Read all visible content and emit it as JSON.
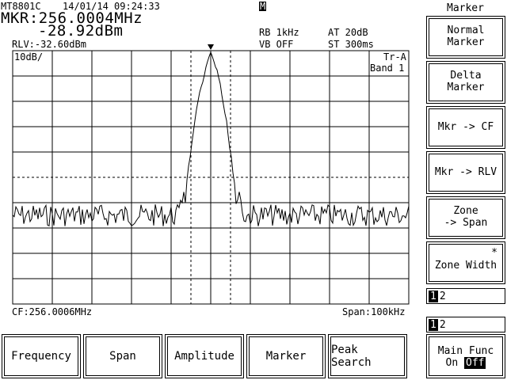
{
  "header": {
    "model": "MT8801C",
    "datetime": "14/01/14 09:24:33",
    "mkr_freq": "MKR:256.0004MHz",
    "mkr_level": "-28.92dBm",
    "rlv": "RLV:-32.60dBm",
    "rb": "RB 1kHz",
    "vb": "VB OFF",
    "at": "AT 20dB",
    "st": "ST 300ms",
    "marker_flag": "M"
  },
  "graph": {
    "scale": "10dB/",
    "trace": "Tr-A",
    "band": "Band 1",
    "cf": "CF:256.0006MHz",
    "span": "Span:100kHz"
  },
  "side_menu": {
    "title": "Marker",
    "items": [
      {
        "line1": "Normal",
        "line2": "Marker"
      },
      {
        "line1": "Delta",
        "line2": "Marker"
      },
      {
        "line1": "Mkr -> CF",
        "line2": ""
      },
      {
        "line1": "Mkr -> RLV",
        "line2": ""
      },
      {
        "line1": "Zone",
        "line2": "-> Span"
      },
      {
        "line1": "Zone Width",
        "line2": "",
        "star": "*"
      }
    ],
    "indicator1": {
      "on": "1",
      "off": "2"
    },
    "indicator2": {
      "on": "1",
      "off": "2"
    },
    "main_func": {
      "label": "Main Func",
      "on": "On",
      "off": "Off"
    }
  },
  "bottom_menu": [
    "Frequency",
    "Span",
    "Amplitude",
    "Marker",
    "Peak Search"
  ]
}
